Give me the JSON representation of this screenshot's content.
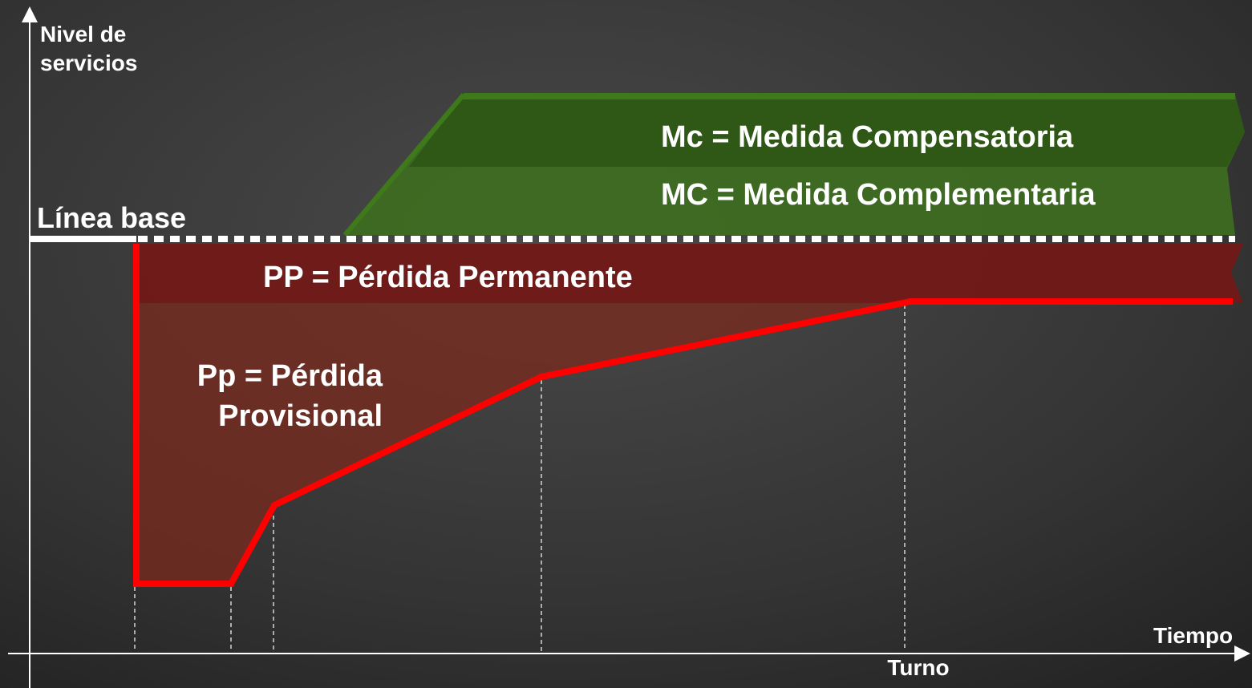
{
  "y_axis": {
    "label": [
      "Nivel de",
      "servicios"
    ]
  },
  "x_axis": {
    "label": "Tiempo",
    "marker": "Turno"
  },
  "baseline": {
    "label": "Línea base"
  },
  "zones": {
    "compensatory": "Mc = Medida Compensatoria",
    "complementary": "MC = Medida Complementaria",
    "permanent_loss": "PP = Pérdida Permanente",
    "provisional_loss": [
      "Pp = Pérdida",
      "Provisional"
    ]
  }
}
